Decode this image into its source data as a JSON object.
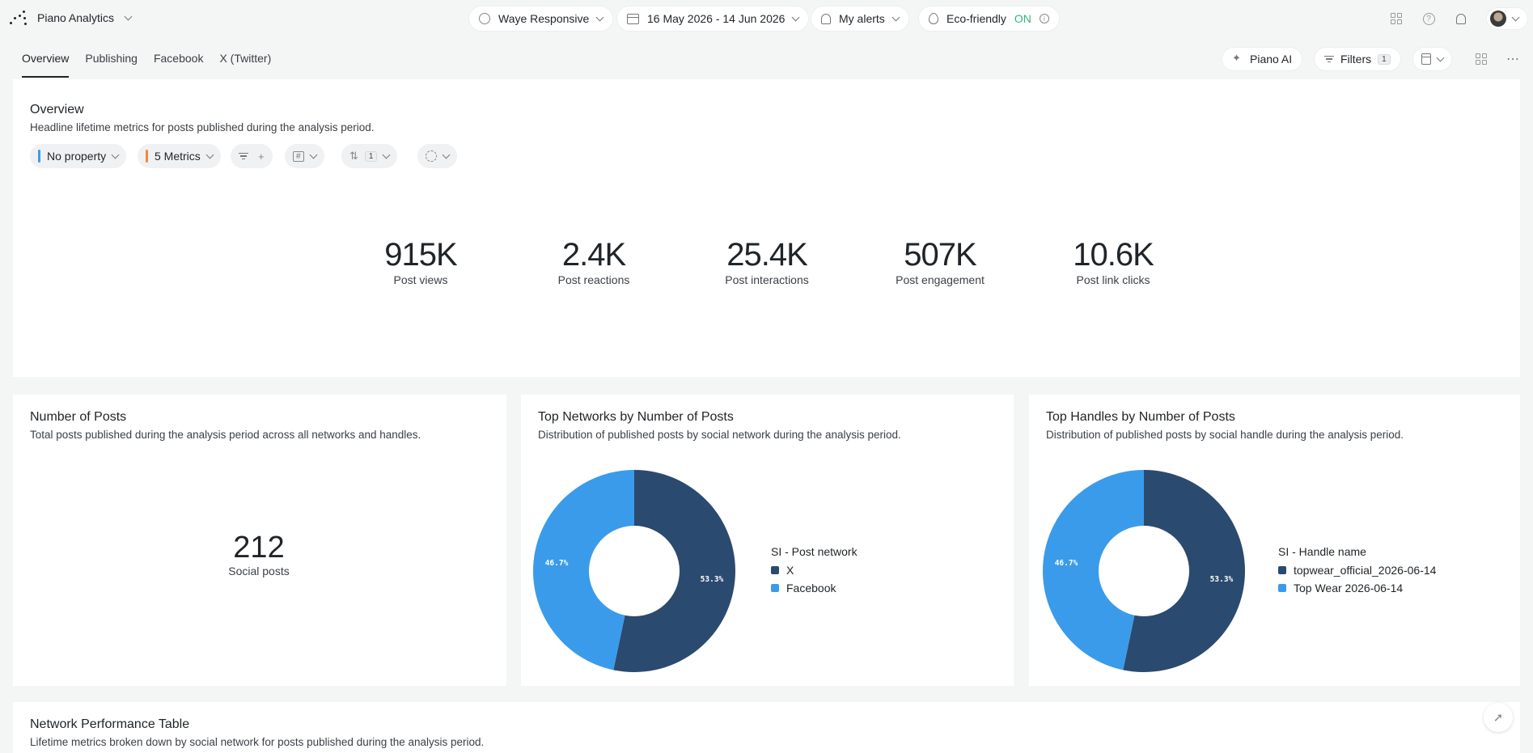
{
  "app": {
    "name": "Piano Analytics"
  },
  "topbar": {
    "site": "Waye Responsive",
    "date_range": "16 May 2026 - 14 Jun 2026",
    "alerts": "My alerts",
    "eco_label": "Eco-friendly",
    "eco_state": "ON"
  },
  "tabs": [
    "Overview",
    "Publishing",
    "Facebook",
    "X (Twitter)"
  ],
  "toolbar": {
    "ai": "Piano AI",
    "filters": "Filters",
    "filters_count": "1"
  },
  "overview": {
    "title": "Overview",
    "desc": "Headline lifetime metrics for posts published during the analysis period.",
    "property": "No property",
    "metrics_btn": "5 Metrics",
    "filter_plus": "+",
    "hash": "#",
    "sort_count": "1",
    "metrics": [
      {
        "value": "915K",
        "label": "Post views"
      },
      {
        "value": "2.4K",
        "label": "Post reactions"
      },
      {
        "value": "25.4K",
        "label": "Post interactions"
      },
      {
        "value": "507K",
        "label": "Post engagement"
      },
      {
        "value": "10.6K",
        "label": "Post link clicks"
      }
    ]
  },
  "posts": {
    "title": "Number of Posts",
    "desc": "Total posts published during the analysis period across all networks and handles.",
    "value": "212",
    "label": "Social posts"
  },
  "networks": {
    "title": "Top Networks by Number of Posts",
    "desc": "Distribution of published posts by social network during the analysis period.",
    "chart_data": {
      "type": "pie",
      "legend_title": "SI - Post network",
      "slices": [
        {
          "name": "X",
          "value": 53.3,
          "label": "53.3%",
          "color": "#2b4a6f"
        },
        {
          "name": "Facebook",
          "value": 46.7,
          "label": "46.7%",
          "color": "#3a9bea"
        }
      ]
    }
  },
  "handles": {
    "title": "Top Handles by Number of Posts",
    "desc": "Distribution of published posts by social handle during the analysis period.",
    "chart_data": {
      "type": "pie",
      "legend_title": "SI - Handle name",
      "slices": [
        {
          "name": "topwear_official_2026-06-14",
          "value": 53.3,
          "label": "53.3%",
          "color": "#2b4a6f"
        },
        {
          "name": "Top Wear 2026-06-14",
          "value": 46.7,
          "label": "46.7%",
          "color": "#3a9bea"
        }
      ]
    }
  },
  "network_table": {
    "title": "Network Performance Table",
    "desc": "Lifetime metrics broken down by social network for posts published during the analysis period."
  }
}
